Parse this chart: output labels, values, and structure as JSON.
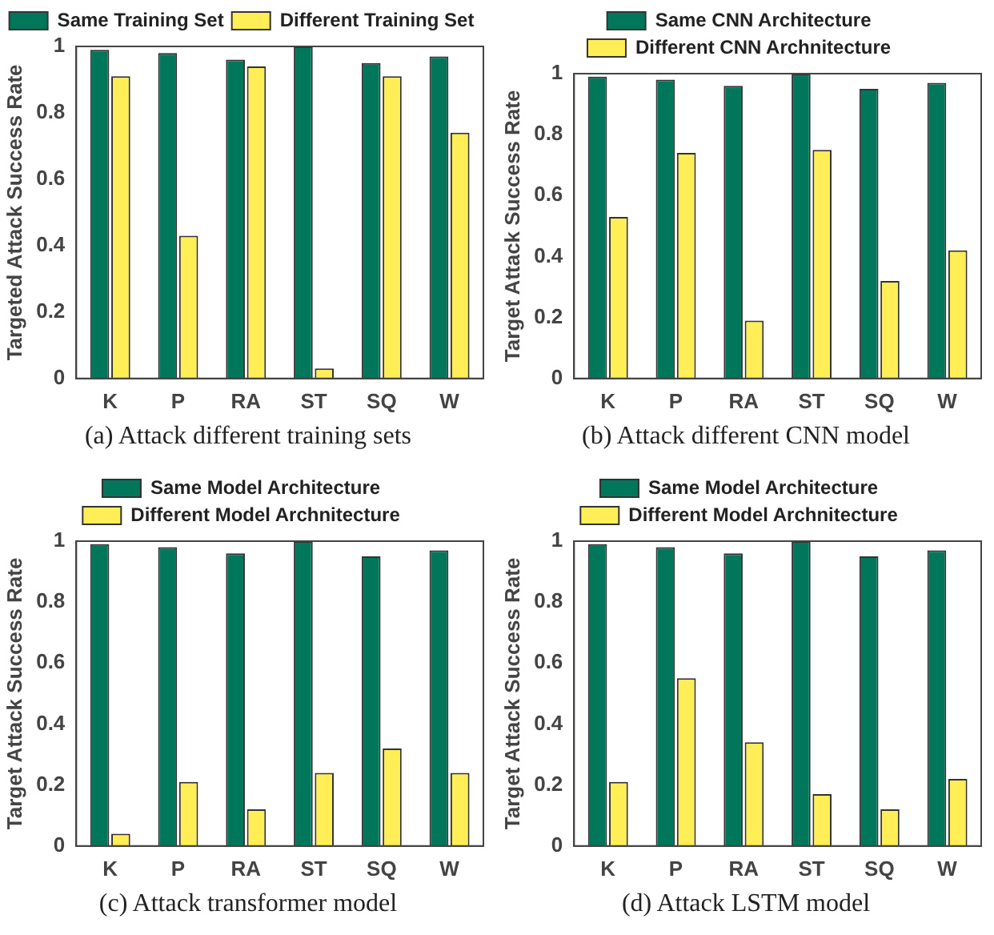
{
  "chart_data": [
    {
      "type": "bar",
      "ylabel": "Targeted Attack Success Rate",
      "categories": [
        "K",
        "P",
        "RA",
        "ST",
        "SQ",
        "W"
      ],
      "series": [
        {
          "name": "Same Training Set",
          "color": "#00775a",
          "values": [
            0.99,
            0.98,
            0.96,
            1.0,
            0.95,
            0.97
          ]
        },
        {
          "name": "Different Training Set",
          "color": "#ffee55",
          "values": [
            0.91,
            0.43,
            0.94,
            0.03,
            0.91,
            0.74
          ]
        }
      ],
      "ylim": [
        0,
        1
      ],
      "yticks": [
        0,
        0.2,
        0.4,
        0.6,
        0.8,
        1
      ],
      "grid": false,
      "legend": "top",
      "annotations": [
        "(a)  Attack different training sets"
      ]
    },
    {
      "type": "bar",
      "ylabel": "Target Attack Success Rate",
      "categories": [
        "K",
        "P",
        "RA",
        "ST",
        "SQ",
        "W"
      ],
      "series": [
        {
          "name": "Same CNN Architecture",
          "color": "#00775a",
          "values": [
            0.99,
            0.98,
            0.96,
            1.0,
            0.95,
            0.97
          ]
        },
        {
          "name": "Different CNN Archnitecture",
          "color": "#ffee55",
          "values": [
            0.53,
            0.74,
            0.19,
            0.75,
            0.32,
            0.42
          ]
        }
      ],
      "ylim": [
        0,
        1
      ],
      "yticks": [
        0,
        0.2,
        0.4,
        0.6,
        0.8,
        1
      ],
      "grid": false,
      "legend": "top",
      "annotations": [
        "(b)  Attack different CNN model"
      ]
    },
    {
      "type": "bar",
      "ylabel": "Target Attack Success Rate",
      "categories": [
        "K",
        "P",
        "RA",
        "ST",
        "SQ",
        "W"
      ],
      "series": [
        {
          "name": "Same Model Architecture",
          "color": "#00775a",
          "values": [
            0.99,
            0.98,
            0.96,
            1.0,
            0.95,
            0.97
          ]
        },
        {
          "name": "Different Model Archnitecture",
          "color": "#ffee55",
          "values": [
            0.04,
            0.21,
            0.12,
            0.24,
            0.32,
            0.24
          ]
        }
      ],
      "ylim": [
        0,
        1
      ],
      "yticks": [
        0,
        0.2,
        0.4,
        0.6,
        0.8,
        1
      ],
      "grid": false,
      "legend": "top",
      "annotations": [
        "(c)  Attack transformer model"
      ]
    },
    {
      "type": "bar",
      "ylabel": "Target Attack Success Rate",
      "categories": [
        "K",
        "P",
        "RA",
        "ST",
        "SQ",
        "W"
      ],
      "series": [
        {
          "name": "Same Model Architecture",
          "color": "#00775a",
          "values": [
            0.99,
            0.98,
            0.96,
            1.0,
            0.95,
            0.97
          ]
        },
        {
          "name": "Different Model Archnitecture",
          "color": "#ffee55",
          "values": [
            0.21,
            0.55,
            0.34,
            0.17,
            0.12,
            0.22
          ]
        }
      ],
      "ylim": [
        0,
        1
      ],
      "yticks": [
        0,
        0.2,
        0.4,
        0.6,
        0.8,
        1
      ],
      "grid": false,
      "legend": "top",
      "annotations": [
        "(d)  Attack LSTM model"
      ]
    }
  ]
}
